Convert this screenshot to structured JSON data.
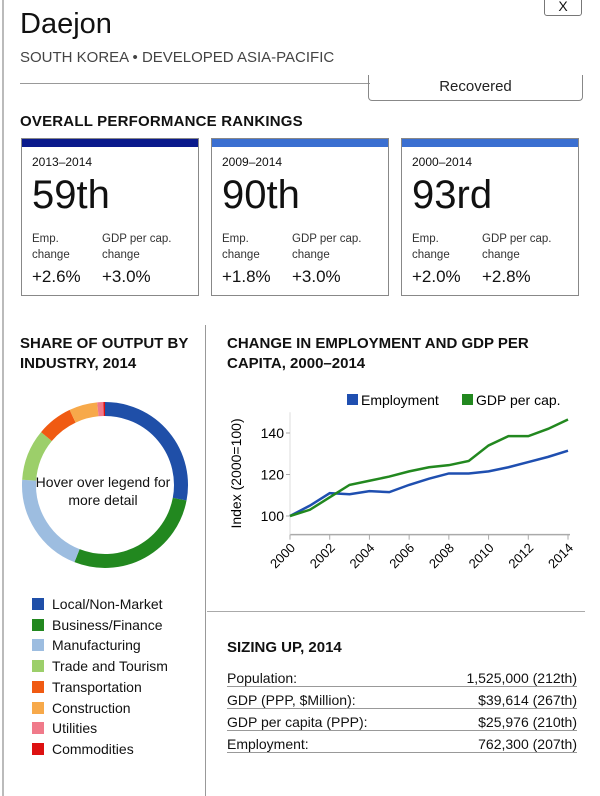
{
  "header": {
    "title": "Daejon",
    "subtitle": "SOUTH KOREA • DEVELOPED ASIA-PACIFIC",
    "close_label": "X",
    "status": "Recovered"
  },
  "rankings": {
    "heading": "OVERALL PERFORMANCE RANKINGS",
    "emp_label": "Emp. change",
    "gdp_label": "GDP per cap. change",
    "cards": [
      {
        "period": "2013–2014",
        "rank": "59th",
        "emp": "+2.6%",
        "gdp": "+3.0%",
        "color": "#0a1a8c"
      },
      {
        "period": "2009–2014",
        "rank": "90th",
        "emp": "+1.8%",
        "gdp": "+3.0%",
        "color": "#3a6fd1"
      },
      {
        "period": "2000–2014",
        "rank": "93rd",
        "emp": "+2.0%",
        "gdp": "+2.8%",
        "color": "#3a6fd1"
      }
    ]
  },
  "share": {
    "heading": "SHARE OF OUTPUT BY INDUSTRY, 2014",
    "center": "Hover over legend for more detail"
  },
  "chart_data": [
    {
      "type": "pie",
      "title": "SHARE OF OUTPUT BY INDUSTRY, 2014",
      "categories": [
        "Local/Non-Market",
        "Business/Finance",
        "Manufacturing",
        "Trade and Tourism",
        "Transportation",
        "Construction",
        "Utilities",
        "Commodities"
      ],
      "values": [
        28,
        28,
        20,
        10,
        7,
        5.5,
        1.2,
        0.3
      ],
      "colors": [
        "#1f4fa8",
        "#22881f",
        "#9dbde0",
        "#9ccf6a",
        "#f05a12",
        "#f7a94a",
        "#f07a8a",
        "#dd1111"
      ]
    },
    {
      "type": "line",
      "title": "CHANGE IN EMPLOYMENT AND GDP PER CAPITA, 2000–2014",
      "ylabel": "Index (2000=100)",
      "xlabel": "",
      "ylim": [
        91,
        150
      ],
      "yticks": [
        "100",
        "120",
        "140"
      ],
      "xticks": [
        "2000",
        "2002",
        "2004",
        "2006",
        "2008",
        "2010",
        "2012",
        "2014"
      ],
      "legend": "top-right",
      "x": [
        2000,
        2001,
        2002,
        2003,
        2004,
        2005,
        2006,
        2007,
        2008,
        2009,
        2010,
        2011,
        2012,
        2013,
        2014
      ],
      "series": [
        {
          "name": "Employment",
          "color": "#1f4fb0",
          "values": [
            100,
            105,
            111,
            110.5,
            112,
            111.5,
            115,
            118,
            120.5,
            120.5,
            121.5,
            123.5,
            126,
            128.5,
            131.5
          ]
        },
        {
          "name": "GDP per cap.",
          "color": "#22881f",
          "values": [
            100,
            103,
            109,
            115,
            117,
            119,
            121.5,
            123.5,
            124.5,
            126.5,
            134,
            138.5,
            138.5,
            142,
            146.5
          ]
        }
      ]
    }
  ],
  "sizing": {
    "heading": "SIZING UP, 2014",
    "rows": [
      {
        "label": "Population:",
        "value": "1,525,000 (212th)"
      },
      {
        "label": "GDP (PPP, $Million):",
        "value": "$39,614 (267th)"
      },
      {
        "label": "GDP per capita (PPP):",
        "value": "$25,976 (210th)"
      },
      {
        "label": "Employment:",
        "value": "762,300 (207th)"
      }
    ]
  }
}
